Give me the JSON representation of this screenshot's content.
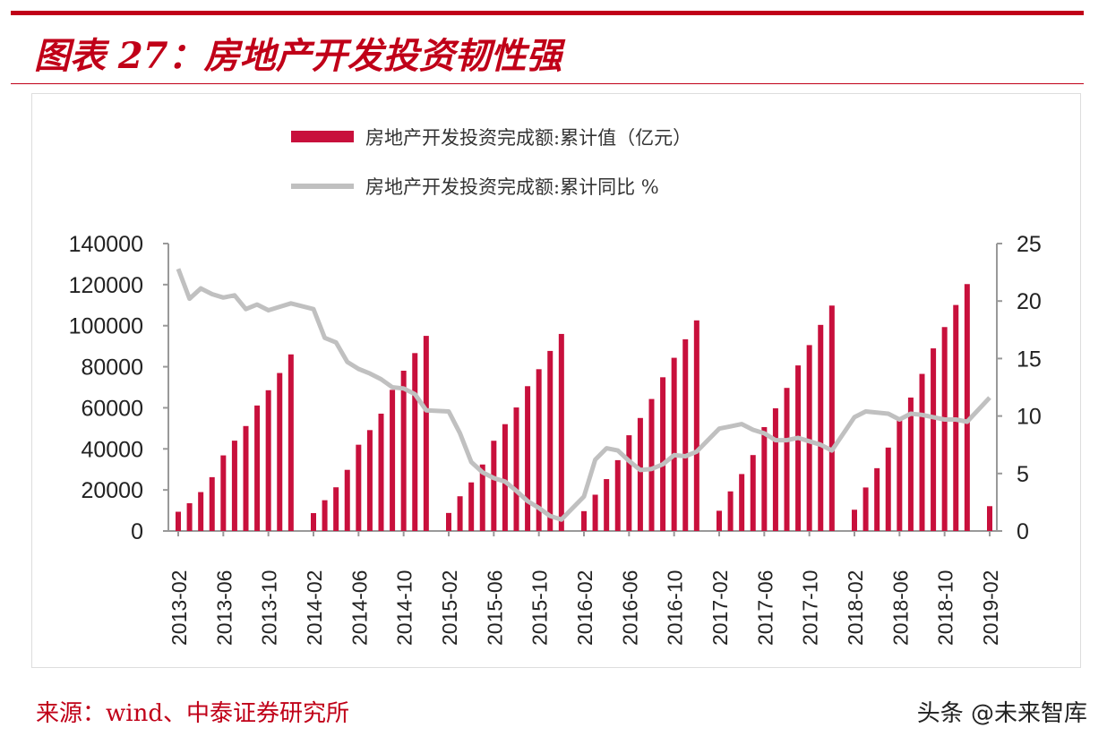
{
  "header": {
    "title": "图表 27：房地产开发投资韧性强"
  },
  "footer": {
    "source": "来源：wind、中泰证券研究所",
    "watermark": "头条 @未来智库"
  },
  "chart_data": {
    "type": "bar+line",
    "title": "",
    "legend": [
      "房地产开发投资完成额:累计值（亿元）",
      "房地产开发投资完成额:累计同比 %"
    ],
    "legend_position": "top",
    "colors": {
      "bar": "#c8103c",
      "line": "#c0c0c0"
    },
    "y_left": {
      "range": [
        0,
        140000
      ],
      "ticks": [
        "0",
        "20000",
        "40000",
        "60000",
        "80000",
        "100000",
        "120000",
        "140000"
      ]
    },
    "y_right": {
      "range": [
        0,
        25
      ],
      "ticks": [
        "0",
        "5",
        "10",
        "15",
        "20",
        "25"
      ]
    },
    "x_tick_labels": [
      "2013-02",
      "2013-06",
      "2013-10",
      "2014-02",
      "2014-06",
      "2014-10",
      "2015-02",
      "2015-06",
      "2015-10",
      "2016-02",
      "2016-06",
      "2016-10",
      "2017-02",
      "2017-06",
      "2017-10",
      "2018-02",
      "2018-06",
      "2018-10",
      "2019-02"
    ],
    "start": "2013-02",
    "series": [
      {
        "name": "房地产开发投资完成额:累计值（亿元）",
        "type": "bar",
        "values": [
          9378,
          13523,
          18953,
          26218,
          36828,
          43996,
          51120,
          61120,
          68554,
          76950,
          86013,
          null,
          8706,
          14992,
          21283,
          29786,
          42019,
          49141,
          57151,
          68751,
          78069,
          86649,
          95036,
          null,
          8786,
          16914,
          23668,
          32383,
          43955,
          52033,
          60165,
          70535,
          78801,
          87702,
          95979,
          null,
          9670,
          17677,
          25277,
          34500,
          46631,
          55043,
          64290,
          74872,
          84363,
          93385,
          102581,
          null,
          9854,
          19292,
          27732,
          36987,
          50610,
          59761,
          69694,
          80644,
          90544,
          100387,
          109799,
          null,
          10357,
          21192,
          30592,
          40632,
          55531,
          64992,
          76519,
          88948,
          99325,
          110083,
          120264,
          null,
          12090
        ]
      },
      {
        "name": "房地产开发投资完成额:累计同比 %",
        "type": "line",
        "axis": "right",
        "values": [
          22.8,
          20.2,
          21.1,
          20.6,
          20.3,
          20.5,
          19.3,
          19.7,
          19.2,
          19.5,
          19.8,
          null,
          19.3,
          16.8,
          16.4,
          14.7,
          14.1,
          13.7,
          13.2,
          12.5,
          12.4,
          11.9,
          10.5,
          null,
          10.4,
          8.5,
          6.0,
          5.1,
          4.6,
          4.3,
          3.5,
          2.6,
          2.0,
          1.3,
          1.0,
          null,
          3.0,
          6.2,
          7.2,
          7.0,
          6.1,
          5.3,
          5.4,
          5.8,
          6.6,
          6.5,
          6.9,
          null,
          8.9,
          9.1,
          9.3,
          8.8,
          8.5,
          7.9,
          7.9,
          8.1,
          7.8,
          7.5,
          7.0,
          null,
          9.9,
          10.4,
          10.3,
          10.2,
          9.7,
          10.2,
          10.1,
          9.9,
          9.7,
          9.7,
          9.5,
          null,
          11.6
        ]
      }
    ]
  }
}
